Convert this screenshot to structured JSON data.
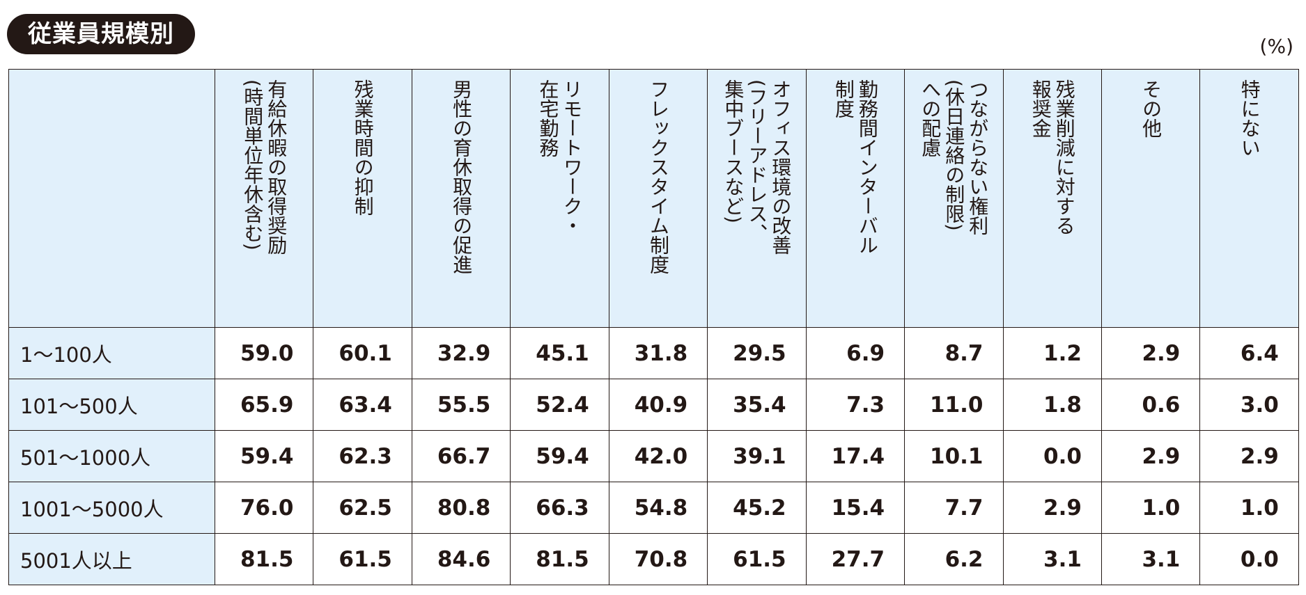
{
  "section_title": "従業員規模別",
  "unit_label": "(%)",
  "chart_data": {
    "type": "table",
    "columns": [
      "有給休暇の取得奨励\n(時間単位年休含む)",
      "残業時間の抑制",
      "男性の育休取得の促進",
      "リモートワーク・\n在宅勤務",
      "フレックスタイム制度",
      "オフィス環境の改善\n(フリーアドレス、\n集中ブースなど)",
      "勤務間インターバル\n制度",
      "つながらない権利\n(休日連絡の制限)\nへの配慮",
      "残業削減に対する\n報奨金",
      "その他",
      "特にない"
    ],
    "rows": [
      {
        "label": "1〜100人",
        "values": [
          "59.0",
          "60.1",
          "32.9",
          "45.1",
          "31.8",
          "29.5",
          "6.9",
          "8.7",
          "1.2",
          "2.9",
          "6.4"
        ]
      },
      {
        "label": "101〜500人",
        "values": [
          "65.9",
          "63.4",
          "55.5",
          "52.4",
          "40.9",
          "35.4",
          "7.3",
          "11.0",
          "1.8",
          "0.6",
          "3.0"
        ]
      },
      {
        "label": "501〜1000人",
        "values": [
          "59.4",
          "62.3",
          "66.7",
          "59.4",
          "42.0",
          "39.1",
          "17.4",
          "10.1",
          "0.0",
          "2.9",
          "2.9"
        ]
      },
      {
        "label": "1001〜5000人",
        "values": [
          "76.0",
          "62.5",
          "80.8",
          "66.3",
          "54.8",
          "45.2",
          "15.4",
          "7.7",
          "2.9",
          "1.0",
          "1.0"
        ]
      },
      {
        "label": "5001人以上",
        "values": [
          "81.5",
          "61.5",
          "84.6",
          "81.5",
          "70.8",
          "61.5",
          "27.7",
          "6.2",
          "3.1",
          "3.1",
          "0.0"
        ]
      }
    ]
  }
}
